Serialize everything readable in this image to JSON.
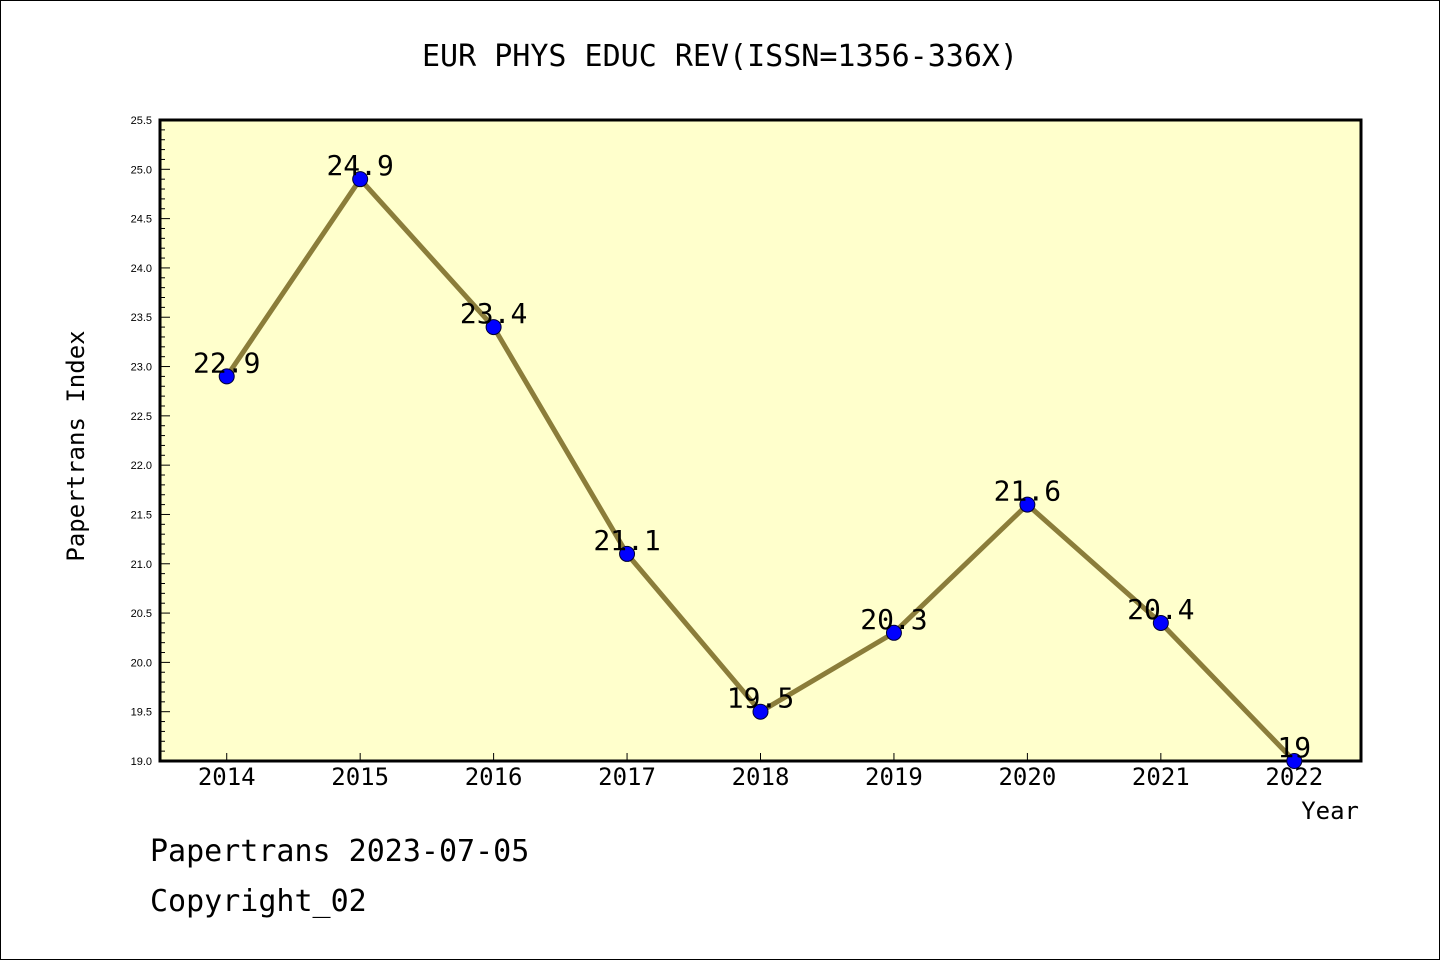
{
  "chart_data": {
    "type": "line",
    "title": "EUR PHYS EDUC REV(ISSN=1356-336X)",
    "xlabel": "Year",
    "ylabel": "Papertrans Index",
    "x": [
      2014,
      2015,
      2016,
      2017,
      2018,
      2019,
      2020,
      2021,
      2022
    ],
    "series": [
      {
        "values": [
          22.9,
          24.9,
          23.4,
          21.1,
          19.5,
          20.3,
          21.6,
          20.4,
          19.0
        ],
        "labels": [
          "22.9",
          "24.9",
          "23.4",
          "21.1",
          "19.5",
          "20.3",
          "21.6",
          "20.4",
          "19"
        ]
      }
    ],
    "x_tick_labels": [
      "2014",
      "2015",
      "2016",
      "2017",
      "2018",
      "2019",
      "2020",
      "2021",
      "2022"
    ],
    "y_ticks": [
      19.0,
      19.5,
      20.0,
      20.5,
      21.0,
      21.5,
      22.0,
      22.5,
      23.0,
      23.5,
      24.0,
      24.5,
      25.0,
      25.5
    ],
    "y_tick_labels": [
      "19.0",
      "19.5",
      "20.0",
      "20.5",
      "21.0",
      "21.5",
      "22.0",
      "22.5",
      "23.0",
      "23.5",
      "24.0",
      "24.5",
      "25.0",
      "25.5"
    ],
    "ylim": [
      19.0,
      25.5
    ],
    "xlim": [
      2013.5,
      2022.5
    ],
    "grid": false,
    "legend": "none",
    "colors": {
      "plot_background": "#ffffcc",
      "line": "#8b7d3a",
      "marker": "#0000ff"
    }
  },
  "footer": {
    "line1": "Papertrans 2023-07-05",
    "line2": "Copyright_02"
  }
}
